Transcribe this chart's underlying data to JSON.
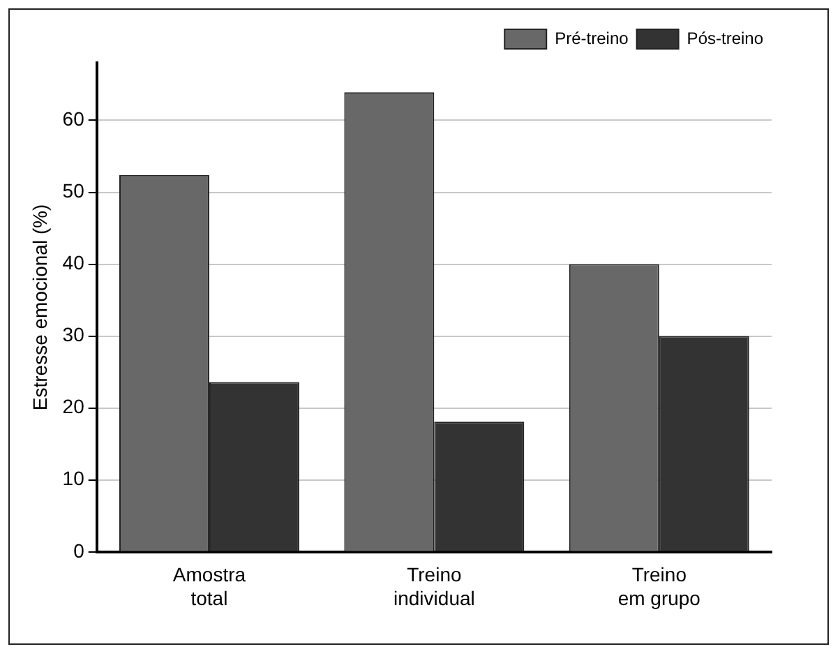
{
  "chart_data": {
    "type": "bar",
    "ylabel": "Estresse emocional (%)",
    "categories": [
      "Amostra\ntotal",
      "Treino\nindividual",
      "Treino\nem grupo"
    ],
    "series": [
      {
        "name": "Pré-treino",
        "color": "#686868",
        "values": [
          52.4,
          63.9,
          40
        ]
      },
      {
        "name": "Pós-treino",
        "color": "#333333",
        "values": [
          23.6,
          18.1,
          30
        ]
      }
    ],
    "ylim": [
      0,
      68
    ],
    "yticks": [
      0,
      10,
      20,
      30,
      40,
      50,
      60
    ],
    "grid": "y",
    "legend": "top right"
  }
}
